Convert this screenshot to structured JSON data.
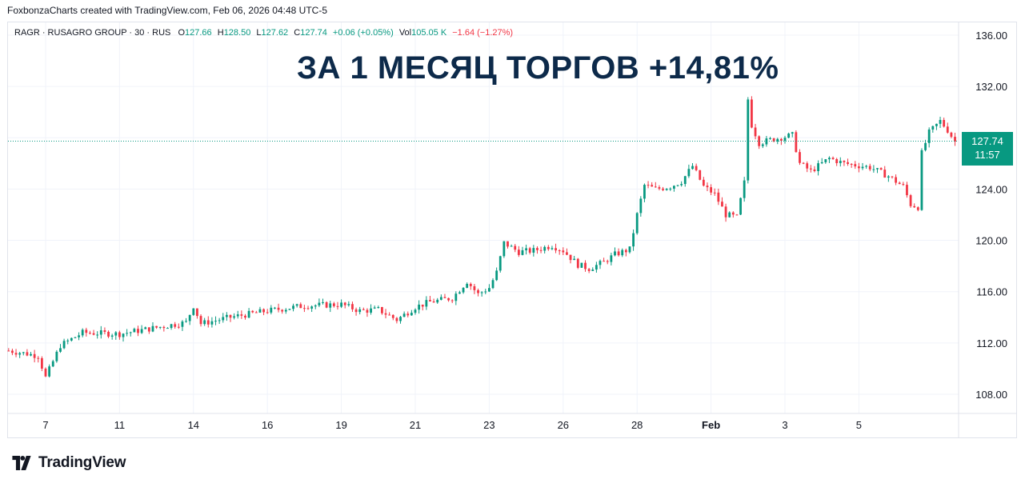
{
  "header": {
    "credit": "FoxbonzaCharts created with TradingView.com, Feb 06, 2026 04:48 UTC-5"
  },
  "legend": {
    "symbol": "RAGR · RUSAGRO GROUP · 30 · RUS",
    "open_label": "O",
    "open": "127.66",
    "high_label": "H",
    "high": "128.50",
    "low_label": "L",
    "low": "127.62",
    "close_label": "C",
    "close": "127.74",
    "change": "+0.06 (+0.05%)",
    "vol_label": "Vol",
    "vol": "105.05 K",
    "vol_change": "−1.64 (−1.27%)"
  },
  "headline": "ЗА 1 МЕСЯЦ ТОРГОВ +14,81%",
  "price_badge": {
    "price": "127.74",
    "countdown": "11:57"
  },
  "brand": {
    "name": "TradingView"
  },
  "colors": {
    "up": "#089981",
    "down": "#f23645",
    "headline": "#0d2a4a",
    "grid": "#f0f3fa"
  },
  "chart_data": {
    "type": "candlestick",
    "title": "",
    "ylim": [
      106.5,
      137.0
    ],
    "y_ticks": [
      "108.00",
      "112.00",
      "116.00",
      "120.00",
      "124.00",
      "128.00",
      "132.00",
      "136.00"
    ],
    "y_tick_values": [
      108,
      112,
      116,
      120,
      124,
      128,
      132,
      136
    ],
    "x_ticks": [
      "7",
      "11",
      "14",
      "16",
      "19",
      "21",
      "23",
      "26",
      "28",
      "Feb",
      "3",
      "5"
    ],
    "x_tick_index": [
      10,
      30,
      50,
      70,
      90,
      110,
      130,
      150,
      170,
      190,
      210,
      230
    ],
    "x_tick_bold": [
      false,
      false,
      false,
      false,
      false,
      false,
      false,
      false,
      false,
      true,
      false,
      false
    ],
    "last_price": 127.74,
    "grid": true,
    "close_path": [
      [
        0,
        111.4
      ],
      [
        8,
        111.0
      ],
      [
        10,
        109.3
      ],
      [
        14,
        111.8
      ],
      [
        20,
        112.8
      ],
      [
        30,
        112.7
      ],
      [
        40,
        113.2
      ],
      [
        48,
        113.6
      ],
      [
        50,
        114.9
      ],
      [
        52,
        113.5
      ],
      [
        60,
        114.0
      ],
      [
        70,
        114.5
      ],
      [
        80,
        114.9
      ],
      [
        90,
        115.0
      ],
      [
        95,
        114.5
      ],
      [
        100,
        114.6
      ],
      [
        105,
        113.8
      ],
      [
        110,
        114.8
      ],
      [
        114,
        115.2
      ],
      [
        120,
        115.5
      ],
      [
        124,
        116.8
      ],
      [
        127,
        115.8
      ],
      [
        130,
        116.3
      ],
      [
        132,
        117.5
      ],
      [
        134,
        119.8
      ],
      [
        138,
        119.1
      ],
      [
        142,
        119.2
      ],
      [
        147,
        119.6
      ],
      [
        150,
        119.2
      ],
      [
        154,
        118.1
      ],
      [
        157,
        117.8
      ],
      [
        161,
        118.3
      ],
      [
        164,
        118.9
      ],
      [
        168,
        119.3
      ],
      [
        170,
        122.0
      ],
      [
        172,
        124.3
      ],
      [
        175,
        124.0
      ],
      [
        179,
        124.2
      ],
      [
        182,
        124.6
      ],
      [
        185,
        125.8
      ],
      [
        188,
        124.2
      ],
      [
        191,
        123.6
      ],
      [
        194,
        122.0
      ],
      [
        197,
        121.8
      ],
      [
        199,
        124.5
      ],
      [
        200,
        131.0
      ],
      [
        201,
        129.0
      ],
      [
        203,
        127.6
      ],
      [
        207,
        127.9
      ],
      [
        212,
        128.2
      ],
      [
        214,
        126.0
      ],
      [
        217,
        125.4
      ],
      [
        222,
        126.4
      ],
      [
        226,
        126.0
      ],
      [
        233,
        125.7
      ],
      [
        238,
        125.0
      ],
      [
        242,
        124.2
      ],
      [
        244,
        122.8
      ],
      [
        246,
        122.6
      ],
      [
        247,
        126.8
      ],
      [
        249,
        128.4
      ],
      [
        252,
        129.3
      ],
      [
        254,
        128.6
      ],
      [
        256,
        127.7
      ]
    ]
  }
}
